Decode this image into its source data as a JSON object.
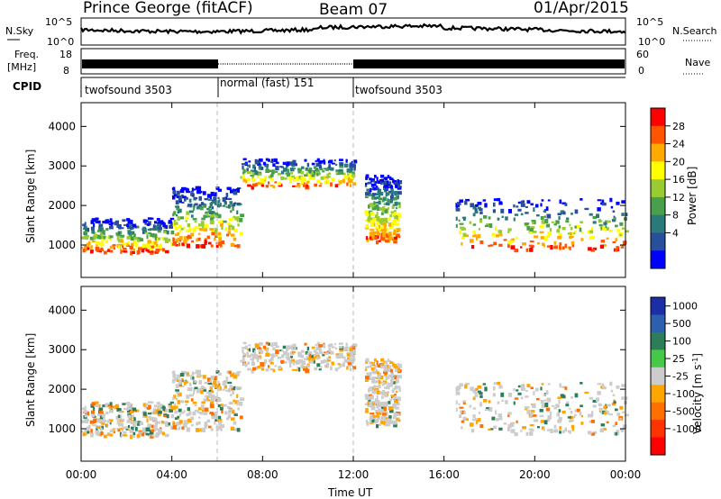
{
  "header": {
    "station": "Prince George (fitACF)",
    "beam": "Beam 07",
    "date": "01/Apr/2015"
  },
  "strips": {
    "nsky_label": "N.Sky",
    "nsky_ticks": [
      "10^5",
      "10^0"
    ],
    "nsearch_label": "N.Search",
    "freq_label_1": "Freq.",
    "freq_label_2": "[MHz]",
    "freq_ticks": [
      "18",
      "8"
    ],
    "nave_label": "Nave",
    "nave_ticks": [
      "60",
      "0"
    ],
    "cpid_label": "CPID"
  },
  "cpid_segments": [
    {
      "label": "twofsound 3503",
      "start_hour": 0,
      "end_hour": 6
    },
    {
      "label": "normal (fast) 151",
      "start_hour": 6,
      "end_hour": 12
    },
    {
      "label": "twofsound 3503",
      "start_hour": 12,
      "end_hour": 24
    }
  ],
  "power_colorbar": {
    "title": "Power [dB]",
    "ticks": [
      "28",
      "24",
      "20",
      "16",
      "12",
      "8",
      "4"
    ],
    "colors": [
      "#ff0000",
      "#ff5500",
      "#ffaa00",
      "#ffff00",
      "#99cc33",
      "#4aa04a",
      "#2a7a7a",
      "#284f9c",
      "#0000ff"
    ]
  },
  "velocity_colorbar": {
    "title": "Velocity [m s",
    "title_sup": "-1",
    "title_end": "]",
    "ticks": [
      "1000",
      "500",
      "100",
      "25",
      "-25",
      "-100",
      "-500",
      "-1000"
    ],
    "colors": [
      "#1a2fa6",
      "#2c5fae",
      "#2e7d5a",
      "#46c848",
      "#cccccc",
      "#ffa500",
      "#ff7000",
      "#ff3300",
      "#ff0000"
    ]
  },
  "chart_data": {
    "type": "heatmap",
    "title": "Prince George (fitACF) Beam 07 01/Apr/2015",
    "xlabel": "Time UT",
    "ylabel": "Slant Range [km]",
    "x_ticks": [
      "00:00",
      "04:00",
      "08:00",
      "12:00",
      "16:00",
      "20:00",
      "00:00"
    ],
    "x_range_hours": [
      0,
      24
    ],
    "y_ticks": [
      1000,
      2000,
      3000,
      4000
    ],
    "y_range_km": [
      180,
      4600
    ],
    "panels": [
      "Power [dB]",
      "Velocity [m s-1]"
    ],
    "mode_change_hours": [
      6,
      12
    ],
    "scatter_bands": [
      {
        "hours": [
          0,
          4
        ],
        "range_km": [
          850,
          1700
        ]
      },
      {
        "hours": [
          4,
          7
        ],
        "range_km": [
          1000,
          2500
        ]
      },
      {
        "hours": [
          7,
          12
        ],
        "range_km": [
          2500,
          3200
        ]
      },
      {
        "hours": [
          12.5,
          14
        ],
        "range_km": [
          1100,
          2800
        ]
      },
      {
        "hours": [
          16.5,
          24
        ],
        "range_km": [
          900,
          2200
        ]
      }
    ]
  }
}
